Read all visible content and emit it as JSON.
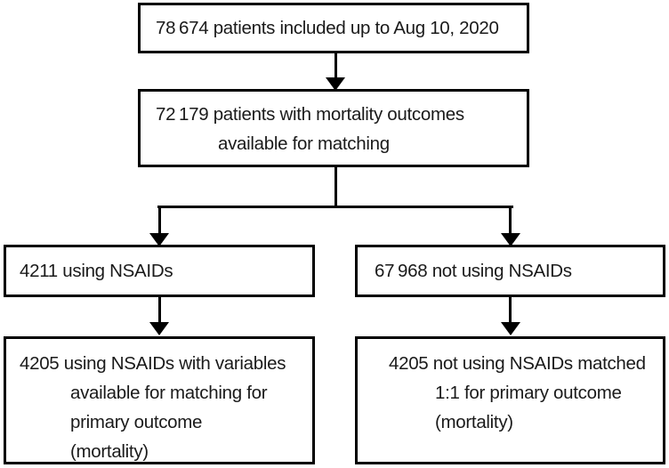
{
  "figure": {
    "type": "patient-flow-diagram",
    "colors": {
      "border": "#000000",
      "text": "#1a1a1a",
      "background": "#ffffff"
    },
    "boxes": {
      "included": {
        "lines": [
          "78 674 patients included up to Aug 10, 2020"
        ]
      },
      "mortality": {
        "lines": [
          "72 179 patients with mortality outcomes",
          "available for matching"
        ]
      },
      "nsaid": {
        "lines": [
          "4211 using NSAIDs"
        ]
      },
      "no_nsaid": {
        "lines": [
          "67 968 not using NSAIDs"
        ]
      },
      "nsaid_matched": {
        "lines": [
          "4205 using NSAIDs with variables",
          "available for matching for",
          "primary outcome",
          "(mortality)"
        ]
      },
      "no_nsaid_matched": {
        "lines": [
          "4205 not using NSAIDs matched",
          "1:1 for primary outcome",
          "(mortality)"
        ]
      }
    }
  }
}
